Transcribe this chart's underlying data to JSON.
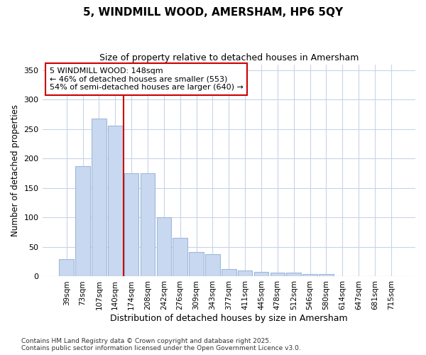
{
  "title1": "5, WINDMILL WOOD, AMERSHAM, HP6 5QY",
  "title2": "Size of property relative to detached houses in Amersham",
  "xlabel": "Distribution of detached houses by size in Amersham",
  "ylabel": "Number of detached properties",
  "categories": [
    "39sqm",
    "73sqm",
    "107sqm",
    "140sqm",
    "174sqm",
    "208sqm",
    "242sqm",
    "276sqm",
    "309sqm",
    "343sqm",
    "377sqm",
    "411sqm",
    "445sqm",
    "478sqm",
    "512sqm",
    "546sqm",
    "580sqm",
    "614sqm",
    "647sqm",
    "681sqm",
    "715sqm"
  ],
  "values": [
    29,
    187,
    268,
    256,
    175,
    175,
    100,
    65,
    41,
    38,
    13,
    10,
    8,
    7,
    6,
    4,
    4,
    1,
    1,
    1,
    1
  ],
  "bar_color": "#c8d8f0",
  "bar_edge_color": "#a0b8d8",
  "background_color": "#ffffff",
  "grid_color": "#c8d4e8",
  "vline_color": "#cc0000",
  "annotation_text": "5 WINDMILL WOOD: 148sqm\n← 46% of detached houses are smaller (553)\n54% of semi-detached houses are larger (640) →",
  "annotation_box_color": "#ffffff",
  "annotation_box_edge_color": "#cc0000",
  "footer_text": "Contains HM Land Registry data © Crown copyright and database right 2025.\nContains public sector information licensed under the Open Government Licence v3.0.",
  "ylim": [
    0,
    360
  ],
  "yticks": [
    0,
    50,
    100,
    150,
    200,
    250,
    300,
    350
  ]
}
